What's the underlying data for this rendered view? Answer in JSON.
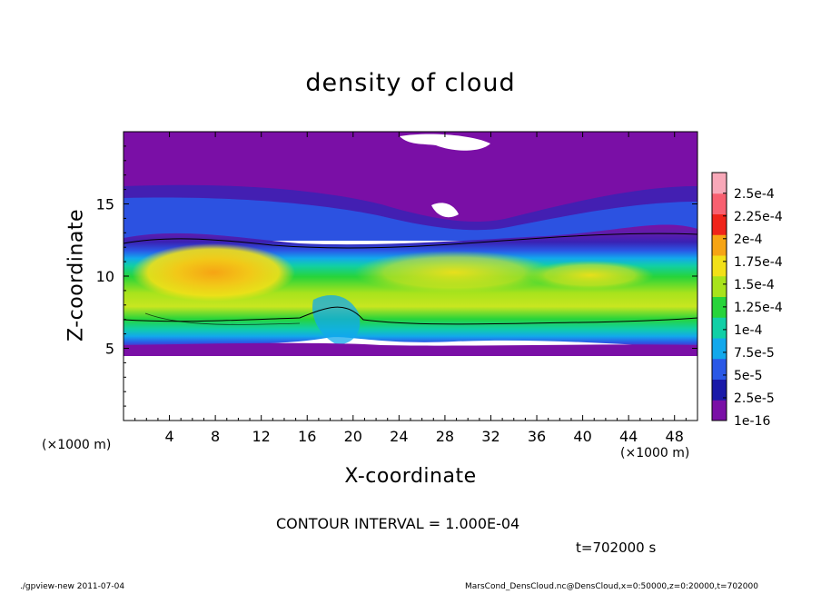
{
  "chart_data": {
    "type": "heatmap",
    "title": "density of cloud",
    "xlabel": "X-coordinate",
    "ylabel": "Z-coordinate",
    "x_unit_label": "(×1000 m)",
    "xlim": [
      0,
      50
    ],
    "ylim": [
      0,
      20
    ],
    "x_ticks": [
      4,
      8,
      12,
      16,
      20,
      24,
      28,
      32,
      36,
      40,
      44,
      48
    ],
    "y_ticks": [
      5,
      10,
      15
    ],
    "colorbar": {
      "labels": [
        "1e-16",
        "2.5e-5",
        "5e-5",
        "7.5e-5",
        "1e-4",
        "1.25e-4",
        "1.5e-4",
        "1.75e-4",
        "2e-4",
        "2.25e-4",
        "2.5e-4"
      ],
      "colors": [
        "#7a0fa6",
        "#1a1aa8",
        "#2a58e6",
        "#12a8ec",
        "#11cfa6",
        "#27d43a",
        "#a8e31c",
        "#f2e018",
        "#f6a414",
        "#f0241a",
        "#f86070",
        "#f8a8b8"
      ]
    },
    "contour_interval_text": "CONTOUR INTERVAL = 1.000E-04",
    "time_text": "t=702000 s",
    "footer_left": "./gpview-new   2011-07-04",
    "footer_right": "MarsCond_DensCloud.nc@DensCloud,x=0:50000,z=0:20000,t=702000"
  }
}
